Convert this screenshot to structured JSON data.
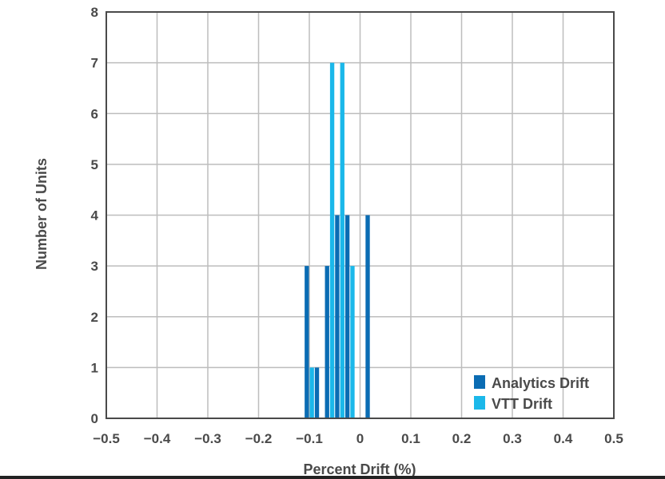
{
  "chart_data": {
    "type": "bar",
    "xlabel": "Percent Drift (%)",
    "ylabel": "Number of Units",
    "xlim": [
      -0.5,
      0.5
    ],
    "ylim": [
      0,
      8
    ],
    "x_ticks": [
      "−0.5",
      "−0.4",
      "−0.3",
      "−0.2",
      "−0.1",
      "0",
      "0.1",
      "0.2",
      "0.3",
      "0.4",
      "0.5"
    ],
    "y_ticks": [
      "0",
      "1",
      "2",
      "3",
      "4",
      "5",
      "6",
      "7",
      "8"
    ],
    "grid": true,
    "legend_position": "bottom-right",
    "bin_width": 0.01,
    "series": [
      {
        "name": "Analytics Drift",
        "color": "#0a6cb3",
        "points": [
          {
            "x": -0.105,
            "y": 3
          },
          {
            "x": -0.085,
            "y": 1
          },
          {
            "x": -0.065,
            "y": 3
          },
          {
            "x": -0.045,
            "y": 4
          },
          {
            "x": -0.025,
            "y": 4
          },
          {
            "x": 0.015,
            "y": 4
          }
        ]
      },
      {
        "name": "VTT Drift",
        "color": "#1bb8ea",
        "points": [
          {
            "x": -0.095,
            "y": 1
          },
          {
            "x": -0.055,
            "y": 7
          },
          {
            "x": -0.035,
            "y": 7
          },
          {
            "x": -0.015,
            "y": 3
          }
        ]
      }
    ]
  }
}
